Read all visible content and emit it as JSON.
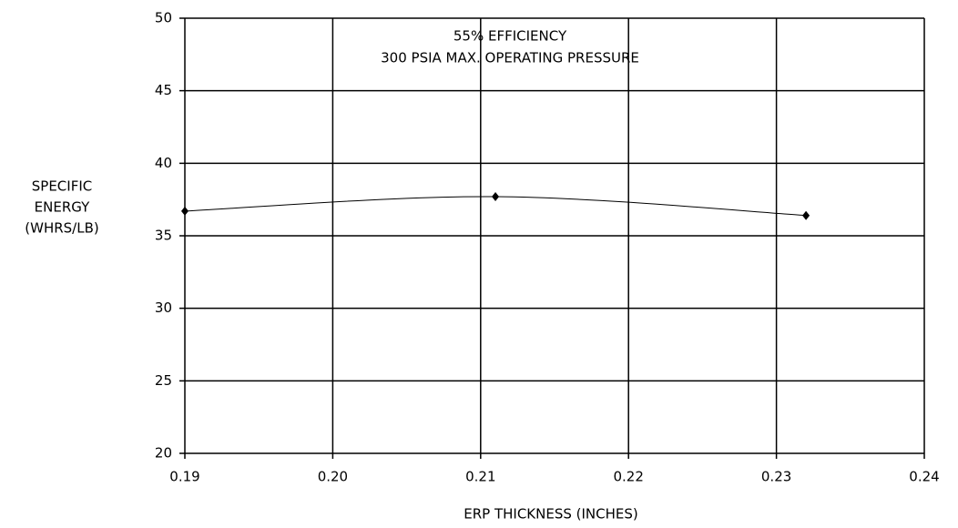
{
  "chart_data": {
    "type": "line",
    "annotations": [
      "55% EFFICIENCY",
      "300 PSIA MAX. OPERATING PRESSURE"
    ],
    "x_label": "ERP THICKNESS (INCHES)",
    "y_label": [
      "SPECIFIC",
      "ENERGY",
      "(WHRS/LB)"
    ],
    "x": [
      0.19,
      0.211,
      0.232
    ],
    "series": [
      {
        "color": "#000000",
        "values": [
          36.7,
          37.7,
          36.4
        ]
      }
    ],
    "xlim": [
      0.19,
      0.24
    ],
    "xticks": [
      0.19,
      {
        "value": 0.2,
        "label": "0.20"
      },
      0.21,
      0.22,
      0.23,
      0.24
    ],
    "ylim": [
      20,
      50
    ],
    "yticks": [
      20,
      25,
      30,
      35,
      40,
      45,
      50
    ],
    "grid": true
  }
}
